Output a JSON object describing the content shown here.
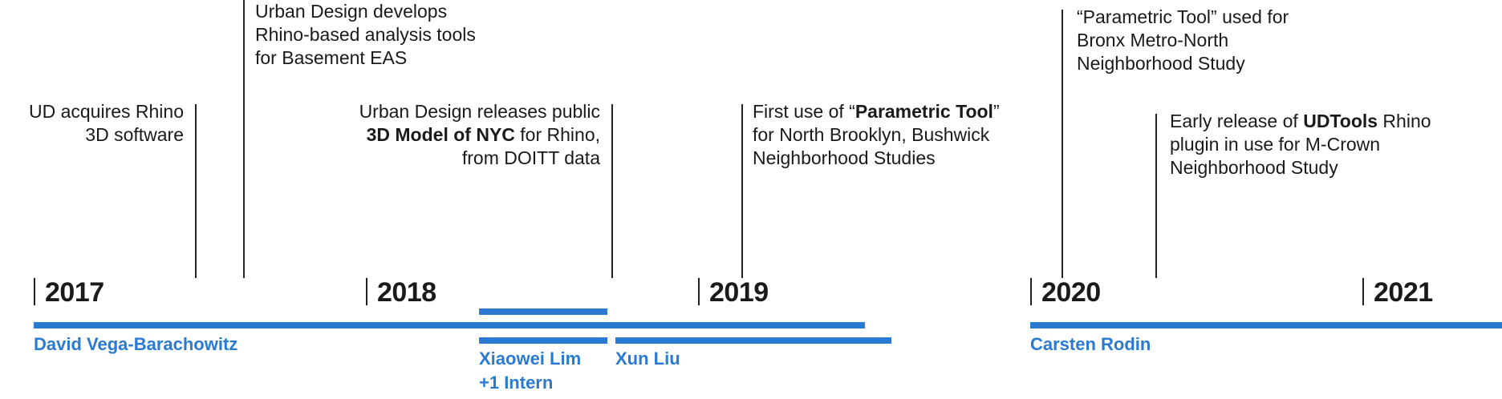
{
  "years": [
    "2017",
    "2018",
    "2019",
    "2020",
    "2021"
  ],
  "events": [
    {
      "id": "rhino",
      "lines": [
        [
          {
            "t": "UD acquires Rhino"
          }
        ],
        [
          {
            "t": "3D software"
          }
        ]
      ]
    },
    {
      "id": "analysis",
      "lines": [
        [
          {
            "t": "Urban Design develops"
          }
        ],
        [
          {
            "t": "Rhino-based analysis tools"
          }
        ],
        [
          {
            "t": "for Basement EAS"
          }
        ]
      ]
    },
    {
      "id": "model",
      "lines": [
        [
          {
            "t": "Urban Design releases public"
          }
        ],
        [
          {
            "t": "3D Model of NYC",
            "b": true
          },
          {
            "t": " for Rhino,"
          }
        ],
        [
          {
            "t": "from DOITT data"
          }
        ]
      ]
    },
    {
      "id": "parametric-first",
      "lines": [
        [
          {
            "t": "First use of “"
          },
          {
            "t": "Parametric Tool",
            "b": true
          },
          {
            "t": "”"
          }
        ],
        [
          {
            "t": "for North Brooklyn, Bushwick"
          }
        ],
        [
          {
            "t": "Neighborhood Studies"
          }
        ]
      ]
    },
    {
      "id": "parametric-bronx",
      "lines": [
        [
          {
            "t": "“Parametric Tool” used for"
          }
        ],
        [
          {
            "t": "Bronx Metro-North"
          }
        ],
        [
          {
            "t": "Neighborhood Study"
          }
        ]
      ]
    },
    {
      "id": "udtools",
      "lines": [
        [
          {
            "t": "Early release of "
          },
          {
            "t": "UDTools",
            "b": true
          },
          {
            "t": " Rhino"
          }
        ],
        [
          {
            "t": "plugin in use for M-Crown"
          }
        ],
        [
          {
            "t": "Neighborhood Study"
          }
        ]
      ]
    }
  ],
  "people": {
    "david": "David Vega-Barachowitz",
    "xiaowei_1": "Xiaowei Lim",
    "xiaowei_2": "+1 Intern",
    "xun": "Xun Liu",
    "carsten": "Carsten Rodin"
  },
  "colors": {
    "accent": "#2a7ad2",
    "ink": "#1a1a1a"
  }
}
